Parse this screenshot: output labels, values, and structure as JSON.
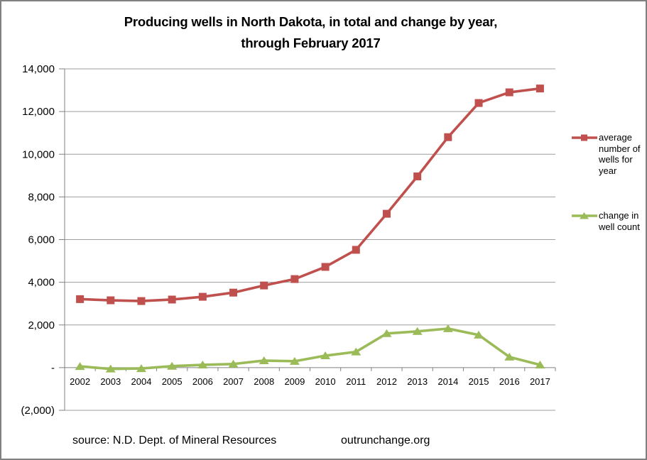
{
  "chart_data": {
    "type": "line",
    "title": "Producing wells in North Dakota, in total and change by year, through February 2017",
    "title_lines": [
      "Producing wells in North Dakota, in total and change by year,",
      "through February 2017"
    ],
    "categories": [
      "2002",
      "2003",
      "2004",
      "2005",
      "2006",
      "2007",
      "2008",
      "2009",
      "2010",
      "2011",
      "2012",
      "2013",
      "2014",
      "2015",
      "2016",
      "2017"
    ],
    "series": [
      {
        "name": "average number of wells for year",
        "color": "#C0504D",
        "marker": "square",
        "values": [
          3210,
          3155,
          3120,
          3190,
          3320,
          3515,
          3850,
          4150,
          4720,
          5520,
          7210,
          8960,
          10800,
          12400,
          12900,
          13080
        ]
      },
      {
        "name": "change in well count",
        "color": "#9BBB59",
        "marker": "triangle",
        "values": [
          60,
          -60,
          -40,
          70,
          130,
          170,
          330,
          300,
          560,
          740,
          1600,
          1700,
          1830,
          1530,
          500,
          130
        ]
      }
    ],
    "ylim": [
      -2000,
      14000
    ],
    "y_tick_step": 2000,
    "y_ticks": [
      {
        "value": 14000,
        "label": "14,000"
      },
      {
        "value": 12000,
        "label": "12,000"
      },
      {
        "value": 10000,
        "label": "10,000"
      },
      {
        "value": 8000,
        "label": "8,000"
      },
      {
        "value": 6000,
        "label": "6,000"
      },
      {
        "value": 4000,
        "label": "4,000"
      },
      {
        "value": 2000,
        "label": "2,000"
      },
      {
        "value": 0,
        "label": "-"
      },
      {
        "value": -2000,
        "label": "(2,000)"
      }
    ],
    "grid": true,
    "legend_position": "right",
    "gridline_color": "#9E9E9E",
    "axis_color": "#808080",
    "text_color": "#000000"
  },
  "footer": {
    "source": "source: N.D. Dept. of Mineral Resources",
    "site": "outrunchange.org"
  }
}
